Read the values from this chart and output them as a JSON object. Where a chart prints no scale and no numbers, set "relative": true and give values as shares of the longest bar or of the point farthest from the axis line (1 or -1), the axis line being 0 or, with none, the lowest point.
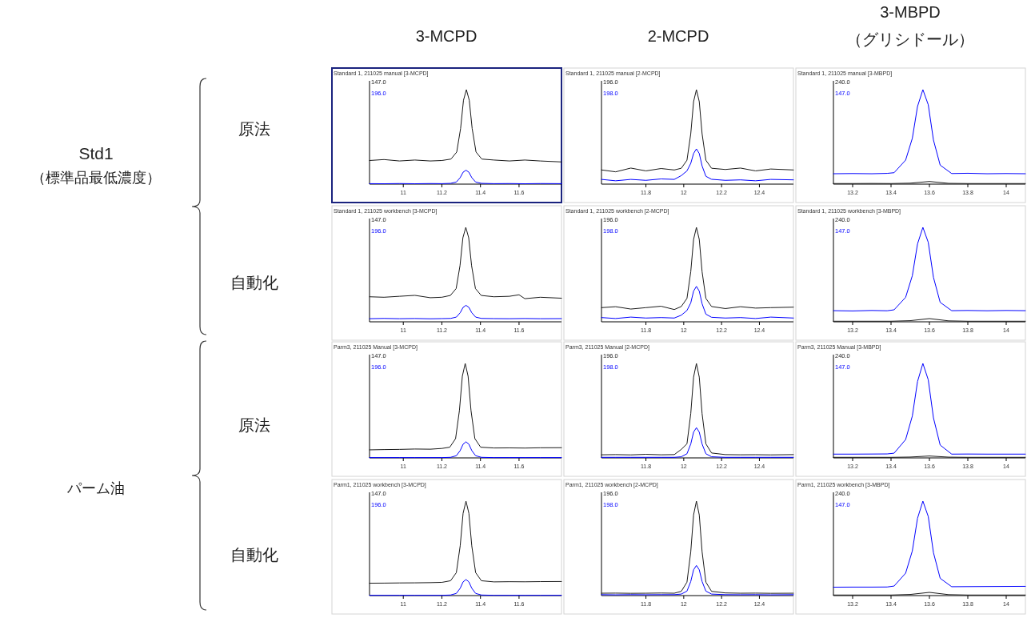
{
  "chart_data": [
    {
      "type": "other",
      "annotations": [
        "3-MCPD",
        "2-MCPD",
        "3-MBPD",
        "（グリシドール）",
        "Std1",
        "（標準品最低濃度）",
        "原法",
        "自動化",
        "パーム油",
        "原法",
        "自動化"
      ]
    },
    {
      "type": "line",
      "title": "Standard 1, 211025 manual [3-MCPD]",
      "relative": true,
      "tick_labels": "x",
      "xlim": [
        10.825,
        11.82
      ],
      "xticks": [
        11,
        11.2,
        11.4,
        11.6
      ],
      "series": [
        {
          "name": "147.0",
          "color": "#1a1a1a",
          "x": [
            10.825,
            10.9,
            10.98,
            11.06,
            11.14,
            11.2,
            11.247,
            11.277,
            11.297,
            11.312,
            11.327,
            11.342,
            11.357,
            11.377,
            11.407,
            11.47,
            11.55,
            11.63,
            11.71,
            11.82
          ],
          "values": [
            0.25,
            0.26,
            0.245,
            0.255,
            0.245,
            0.25,
            0.265,
            0.34,
            0.588,
            0.888,
            1,
            0.888,
            0.588,
            0.34,
            0.265,
            0.255,
            0.245,
            0.255,
            0.245,
            0.235
          ]
        },
        {
          "name": "196.0",
          "color": "#0000ff",
          "x": [
            10.825,
            10.9,
            10.98,
            11.06,
            11.14,
            11.2,
            11.245,
            11.275,
            11.295,
            11.31,
            11.325,
            11.34,
            11.355,
            11.375,
            11.405,
            11.47,
            11.55,
            11.63,
            11.71,
            11.82
          ],
          "values": [
            0.005,
            0.004,
            0.006,
            0.004,
            0.006,
            0.005,
            0.008,
            0.022,
            0.069,
            0.126,
            0.147,
            0.126,
            0.069,
            0.022,
            0.008,
            0.005,
            0.006,
            0.004,
            0.006,
            0.005
          ]
        }
      ]
    },
    {
      "type": "line",
      "title": "Standard 1, 211025 manual [2-MCPD]",
      "relative": true,
      "tick_labels": "x",
      "xlim": [
        11.565,
        12.58
      ],
      "xticks": [
        11.8,
        12,
        12.2,
        12.4
      ],
      "series": [
        {
          "name": "196.0",
          "color": "#1a1a1a",
          "x": [
            11.565,
            11.64,
            11.72,
            11.8,
            11.88,
            11.95,
            11.987,
            12.017,
            12.037,
            12.052,
            12.067,
            12.082,
            12.097,
            12.117,
            12.147,
            12.22,
            12.3,
            12.38,
            12.46,
            12.58
          ],
          "values": [
            0.15,
            0.13,
            0.17,
            0.14,
            0.165,
            0.15,
            0.168,
            0.253,
            0.533,
            0.873,
            1,
            0.873,
            0.533,
            0.253,
            0.168,
            0.155,
            0.17,
            0.14,
            0.16,
            0.15
          ]
        },
        {
          "name": "198.0",
          "color": "#0000ff",
          "x": [
            11.565,
            11.64,
            11.72,
            11.8,
            11.88,
            11.95,
            11.987,
            12.017,
            12.037,
            12.052,
            12.067,
            12.082,
            12.097,
            12.117,
            12.147,
            12.22,
            12.3,
            12.38,
            12.46,
            12.58
          ],
          "values": [
            0.05,
            0.035,
            0.05,
            0.04,
            0.055,
            0.05,
            0.09,
            0.14,
            0.22,
            0.324,
            0.373,
            0.324,
            0.192,
            0.083,
            0.051,
            0.04,
            0.045,
            0.035,
            0.05,
            0.045
          ]
        }
      ]
    },
    {
      "type": "line",
      "title": "Standard 1, 211025 manual [3-MBPD]",
      "relative": true,
      "tick_labels": "x",
      "xlim": [
        13.1,
        14.1
      ],
      "xticks": [
        13.2,
        13.4,
        13.6,
        13.8,
        14
      ],
      "series": [
        {
          "name": "240.0",
          "color": "#1a1a1a",
          "x": [
            13.1,
            13.2,
            13.3,
            13.4,
            13.5,
            13.6,
            13.7,
            13.8,
            13.9,
            14.0,
            14.1
          ],
          "values": [
            0.006,
            0.006,
            0.007,
            0.006,
            0.01,
            0.028,
            0.008,
            0.006,
            0.006,
            0.006,
            0.006
          ]
        },
        {
          "name": "147.0",
          "color": "#0000ff",
          "x": [
            13.1,
            13.2,
            13.3,
            13.38,
            13.416,
            13.476,
            13.511,
            13.538,
            13.566,
            13.594,
            13.621,
            13.656,
            13.716,
            13.8,
            13.9,
            14.0,
            14.1
          ],
          "values": [
            0.11,
            0.112,
            0.11,
            0.114,
            0.121,
            0.254,
            0.485,
            0.822,
            1,
            0.84,
            0.467,
            0.201,
            0.112,
            0.115,
            0.11,
            0.112,
            0.11
          ]
        }
      ]
    },
    {
      "type": "line",
      "title": "Standard 1, 211025 workbench [3-MCPD]",
      "relative": true,
      "tick_labels": "x",
      "xlim": [
        10.825,
        11.82
      ],
      "xticks": [
        11,
        11.2,
        11.4,
        11.6
      ],
      "series": [
        {
          "name": "147.0",
          "color": "#1a1a1a",
          "x": [
            10.825,
            10.9,
            10.98,
            11.06,
            11.14,
            11.2,
            11.244,
            11.274,
            11.294,
            11.309,
            11.324,
            11.339,
            11.354,
            11.374,
            11.404,
            11.47,
            11.55,
            11.6,
            11.63,
            11.71,
            11.82
          ],
          "values": [
            0.265,
            0.26,
            0.27,
            0.28,
            0.255,
            0.26,
            0.279,
            0.352,
            0.595,
            0.89,
            1,
            0.89,
            0.595,
            0.352,
            0.279,
            0.265,
            0.27,
            0.286,
            0.245,
            0.26,
            0.25
          ]
        },
        {
          "name": "196.0",
          "color": "#0000ff",
          "x": [
            10.825,
            10.9,
            10.98,
            11.06,
            11.14,
            11.2,
            11.245,
            11.275,
            11.295,
            11.31,
            11.325,
            11.34,
            11.355,
            11.375,
            11.405,
            11.47,
            11.55,
            11.63,
            11.71,
            11.82
          ],
          "values": [
            0.033,
            0.036,
            0.033,
            0.035,
            0.032,
            0.034,
            0.036,
            0.05,
            0.096,
            0.153,
            0.174,
            0.153,
            0.096,
            0.05,
            0.036,
            0.034,
            0.033,
            0.035,
            0.033,
            0.034
          ]
        }
      ]
    },
    {
      "type": "line",
      "title": "Standard 1, 211025 workbench [2-MCPD]",
      "relative": true,
      "tick_labels": "x",
      "xlim": [
        11.565,
        12.58
      ],
      "xticks": [
        11.8,
        12,
        12.2,
        12.4
      ],
      "series": [
        {
          "name": "196.0",
          "color": "#1a1a1a",
          "x": [
            11.565,
            11.64,
            11.72,
            11.8,
            11.88,
            11.95,
            11.987,
            12.017,
            12.037,
            12.052,
            12.067,
            12.082,
            12.097,
            12.117,
            12.147,
            12.22,
            12.3,
            12.38,
            12.46,
            12.58
          ],
          "values": [
            0.15,
            0.16,
            0.135,
            0.15,
            0.165,
            0.13,
            0.162,
            0.248,
            0.53,
            0.872,
            1,
            0.872,
            0.53,
            0.248,
            0.162,
            0.14,
            0.16,
            0.145,
            0.15,
            0.155
          ]
        },
        {
          "name": "198.0",
          "color": "#0000ff",
          "x": [
            11.565,
            11.64,
            11.72,
            11.8,
            11.88,
            11.95,
            11.987,
            12.017,
            12.037,
            12.052,
            12.067,
            12.082,
            12.097,
            12.117,
            12.147,
            12.22,
            12.3,
            12.38,
            12.46,
            12.58
          ],
          "values": [
            0.045,
            0.035,
            0.05,
            0.04,
            0.045,
            0.04,
            0.07,
            0.12,
            0.2,
            0.325,
            0.375,
            0.325,
            0.191,
            0.081,
            0.048,
            0.04,
            0.045,
            0.035,
            0.05,
            0.04
          ]
        }
      ]
    },
    {
      "type": "line",
      "title": "Standard 1, 211025 workbench [3-MBPD]",
      "relative": true,
      "tick_labels": "x",
      "xlim": [
        13.1,
        14.1
      ],
      "xticks": [
        13.2,
        13.4,
        13.6,
        13.8,
        14
      ],
      "series": [
        {
          "name": "240.0",
          "color": "#1a1a1a",
          "x": [
            13.1,
            13.2,
            13.3,
            13.4,
            13.5,
            13.6,
            13.7,
            13.8,
            13.9,
            14.0,
            14.1
          ],
          "values": [
            0.006,
            0.006,
            0.006,
            0.006,
            0.012,
            0.034,
            0.01,
            0.006,
            0.006,
            0.006,
            0.006
          ]
        },
        {
          "name": "147.0",
          "color": "#0000ff",
          "x": [
            13.1,
            13.2,
            13.3,
            13.38,
            13.416,
            13.476,
            13.511,
            13.538,
            13.566,
            13.594,
            13.621,
            13.656,
            13.716,
            13.8,
            13.9,
            14.0,
            14.1
          ],
          "values": [
            0.118,
            0.115,
            0.12,
            0.117,
            0.127,
            0.259,
            0.488,
            0.824,
            1,
            0.841,
            0.471,
            0.206,
            0.118,
            0.12,
            0.117,
            0.12,
            0.118
          ]
        }
      ]
    },
    {
      "type": "line",
      "title": "Parm3, 211025 Manual [3-MCPD]",
      "relative": true,
      "tick_labels": "x",
      "xlim": [
        10.825,
        11.82
      ],
      "xticks": [
        11,
        11.2,
        11.4,
        11.6
      ],
      "series": [
        {
          "name": "147.0",
          "color": "#1a1a1a",
          "x": [
            10.825,
            10.9,
            10.98,
            11.06,
            11.14,
            11.2,
            11.241,
            11.271,
            11.291,
            11.306,
            11.321,
            11.336,
            11.351,
            11.371,
            11.401,
            11.47,
            11.55,
            11.63,
            11.71,
            11.82
          ],
          "values": [
            0.085,
            0.088,
            0.09,
            0.094,
            0.092,
            0.1,
            0.113,
            0.204,
            0.502,
            0.864,
            1,
            0.864,
            0.502,
            0.204,
            0.113,
            0.105,
            0.106,
            0.104,
            0.107,
            0.108
          ]
        },
        {
          "name": "196.0",
          "color": "#0000ff",
          "x": [
            10.825,
            10.9,
            10.98,
            11.06,
            11.14,
            11.2,
            11.245,
            11.275,
            11.295,
            11.31,
            11.325,
            11.34,
            11.355,
            11.375,
            11.405,
            11.47,
            11.55,
            11.63,
            11.71,
            11.82
          ],
          "values": [
            0.003,
            0.003,
            0.003,
            0.003,
            0.003,
            0.003,
            0.006,
            0.023,
            0.078,
            0.145,
            0.17,
            0.145,
            0.078,
            0.023,
            0.006,
            0.003,
            0.003,
            0.003,
            0.003,
            0.003
          ]
        }
      ]
    },
    {
      "type": "line",
      "title": "Parm3, 211025 Manual [2-MCPD]",
      "relative": true,
      "tick_labels": "x",
      "xlim": [
        11.565,
        12.58
      ],
      "xticks": [
        11.8,
        12,
        12.2,
        12.4
      ],
      "series": [
        {
          "name": "196.0",
          "color": "#1a1a1a",
          "x": [
            11.565,
            11.64,
            11.72,
            11.8,
            11.88,
            11.95,
            11.987,
            12.017,
            12.037,
            12.052,
            12.067,
            12.082,
            12.097,
            12.117,
            12.147,
            12.22,
            12.3,
            12.38,
            12.46,
            12.58
          ],
          "values": [
            0.033,
            0.035,
            0.032,
            0.038,
            0.033,
            0.035,
            0.09,
            0.149,
            0.468,
            0.855,
            1,
            0.855,
            0.468,
            0.149,
            0.052,
            0.035,
            0.033,
            0.034,
            0.032,
            0.035
          ]
        },
        {
          "name": "198.0",
          "color": "#0000ff",
          "x": [
            11.565,
            11.64,
            11.72,
            11.8,
            11.88,
            11.95,
            11.987,
            12.017,
            12.037,
            12.052,
            12.067,
            12.082,
            12.097,
            12.117,
            12.147,
            12.22,
            12.3,
            12.38,
            12.46,
            12.58
          ],
          "values": [
            0.006,
            0.006,
            0.006,
            0.006,
            0.006,
            0.006,
            0.012,
            0.044,
            0.147,
            0.273,
            0.32,
            0.273,
            0.147,
            0.044,
            0.012,
            0.006,
            0.006,
            0.006,
            0.006,
            0.006
          ]
        }
      ]
    },
    {
      "type": "line",
      "title": "Parm3, 211025 Manual [3-MBPD]",
      "relative": true,
      "tick_labels": "x",
      "xlim": [
        13.1,
        14.1
      ],
      "xticks": [
        13.2,
        13.4,
        13.6,
        13.8,
        14
      ],
      "series": [
        {
          "name": "240.0",
          "color": "#1a1a1a",
          "x": [
            13.1,
            13.2,
            13.3,
            13.4,
            13.5,
            13.6,
            13.7,
            13.8,
            13.9,
            14.0,
            14.1
          ],
          "values": [
            0.006,
            0.006,
            0.006,
            0.006,
            0.009,
            0.02,
            0.008,
            0.006,
            0.006,
            0.006,
            0.006
          ]
        },
        {
          "name": "147.0",
          "color": "#0000ff",
          "x": [
            13.1,
            13.2,
            13.3,
            13.38,
            13.416,
            13.476,
            13.511,
            13.538,
            13.566,
            13.594,
            13.621,
            13.656,
            13.716,
            13.8,
            13.9,
            14.0,
            14.1
          ],
          "values": [
            0.04,
            0.04,
            0.041,
            0.042,
            0.05,
            0.194,
            0.443,
            0.808,
            1,
            0.827,
            0.424,
            0.136,
            0.04,
            0.041,
            0.04,
            0.04,
            0.04
          ]
        }
      ]
    },
    {
      "type": "line",
      "title": "Parm1, 211025 workbench [3-MCPD]",
      "relative": true,
      "tick_labels": "x",
      "xlim": [
        10.825,
        11.82
      ],
      "xticks": [
        11,
        11.2,
        11.4,
        11.6
      ],
      "series": [
        {
          "name": "147.0",
          "color": "#1a1a1a",
          "x": [
            10.825,
            10.9,
            10.98,
            11.06,
            11.14,
            11.2,
            11.245,
            11.275,
            11.295,
            11.31,
            11.325,
            11.34,
            11.355,
            11.375,
            11.405,
            11.47,
            11.55,
            11.63,
            11.71,
            11.82
          ],
          "values": [
            0.131,
            0.132,
            0.134,
            0.135,
            0.137,
            0.14,
            0.157,
            0.243,
            0.527,
            0.871,
            1,
            0.871,
            0.527,
            0.243,
            0.157,
            0.145,
            0.147,
            0.146,
            0.148,
            0.149
          ]
        },
        {
          "name": "196.0",
          "color": "#0000ff",
          "x": [
            10.825,
            10.9,
            10.98,
            11.06,
            11.14,
            11.2,
            11.245,
            11.275,
            11.295,
            11.31,
            11.325,
            11.34,
            11.355,
            11.375,
            11.405,
            11.47,
            11.55,
            11.63,
            11.71,
            11.82
          ],
          "values": [
            0.003,
            0.003,
            0.003,
            0.003,
            0.003,
            0.003,
            0.006,
            0.023,
            0.078,
            0.145,
            0.17,
            0.145,
            0.078,
            0.023,
            0.006,
            0.003,
            0.003,
            0.003,
            0.003,
            0.003
          ]
        }
      ]
    },
    {
      "type": "line",
      "title": "Parm1, 211025 workbench [2-MCPD]",
      "relative": true,
      "tick_labels": "x",
      "xlim": [
        11.565,
        12.58
      ],
      "xticks": [
        11.8,
        12,
        12.2,
        12.4
      ],
      "series": [
        {
          "name": "196.0",
          "color": "#1a1a1a",
          "x": [
            11.565,
            11.64,
            11.72,
            11.8,
            11.88,
            11.95,
            11.987,
            12.017,
            12.037,
            12.052,
            12.067,
            12.082,
            12.097,
            12.117,
            12.147,
            12.22,
            12.3,
            12.38,
            12.46,
            12.58
          ],
          "values": [
            0.025,
            0.026,
            0.024,
            0.025,
            0.027,
            0.025,
            0.045,
            0.142,
            0.464,
            0.854,
            1,
            0.854,
            0.464,
            0.142,
            0.045,
            0.028,
            0.025,
            0.026,
            0.024,
            0.025
          ]
        },
        {
          "name": "198.0",
          "color": "#0000ff",
          "x": [
            11.565,
            11.64,
            11.72,
            11.8,
            11.88,
            11.95,
            11.987,
            12.017,
            12.037,
            12.052,
            12.067,
            12.082,
            12.097,
            12.117,
            12.147,
            12.22,
            12.3,
            12.38,
            12.46,
            12.58
          ],
          "values": [
            0.01,
            0.008,
            0.01,
            0.009,
            0.01,
            0.01,
            0.016,
            0.047,
            0.149,
            0.273,
            0.319,
            0.273,
            0.149,
            0.047,
            0.016,
            0.01,
            0.009,
            0.01,
            0.008,
            0.01
          ]
        }
      ]
    },
    {
      "type": "line",
      "title": "Parm1, 211025 workbench [3-MBPD]",
      "relative": true,
      "tick_labels": "x",
      "xlim": [
        13.1,
        14.1
      ],
      "xticks": [
        13.2,
        13.4,
        13.6,
        13.8,
        14
      ],
      "series": [
        {
          "name": "240.0",
          "color": "#1a1a1a",
          "x": [
            13.1,
            13.2,
            13.3,
            13.4,
            13.5,
            13.6,
            13.7,
            13.8,
            13.9,
            14.0,
            14.1
          ],
          "values": [
            0.006,
            0.006,
            0.006,
            0.006,
            0.012,
            0.034,
            0.01,
            0.006,
            0.006,
            0.006,
            0.006
          ]
        },
        {
          "name": "147.0",
          "color": "#0000ff",
          "x": [
            13.1,
            13.2,
            13.3,
            13.38,
            13.416,
            13.476,
            13.511,
            13.538,
            13.566,
            13.594,
            13.621,
            13.656,
            13.716,
            13.8,
            13.9,
            14.0,
            14.1
          ],
          "values": [
            0.089,
            0.09,
            0.09,
            0.091,
            0.101,
            0.237,
            0.473,
            0.818,
            1,
            0.837,
            0.455,
            0.183,
            0.094,
            0.095,
            0.096,
            0.097,
            0.098
          ]
        }
      ]
    }
  ]
}
